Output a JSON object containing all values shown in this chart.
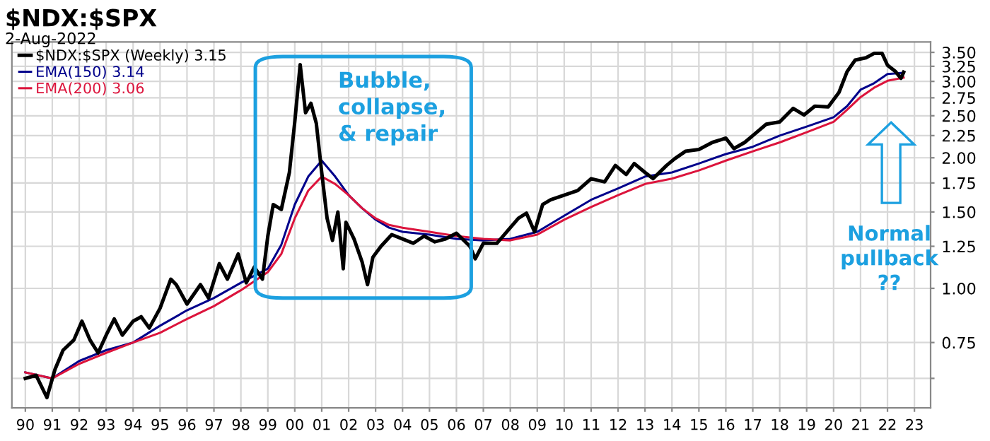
{
  "chart_data": {
    "type": "line",
    "title": "$NDX:$SPX",
    "subtitle": "2-Aug-2022",
    "annotations": [
      "Bubble, collapse, & repair",
      "Normal pullback ??"
    ],
    "log": "y",
    "grid": true,
    "legend": "top left",
    "line_style": "solid",
    "xlim": [
      1989.5,
      2023.6
    ],
    "xticks": [
      {
        "value": 1990,
        "label": "90"
      },
      {
        "value": 1991,
        "label": "91"
      },
      {
        "value": 1992,
        "label": "92"
      },
      {
        "value": 1993,
        "label": "93"
      },
      {
        "value": 1994,
        "label": "94"
      },
      {
        "value": 1995,
        "label": "95"
      },
      {
        "value": 1996,
        "label": "96"
      },
      {
        "value": 1997,
        "label": "97"
      },
      {
        "value": 1998,
        "label": "98"
      },
      {
        "value": 1999,
        "label": "99"
      },
      {
        "value": 2000,
        "label": "00"
      },
      {
        "value": 2001,
        "label": "01"
      },
      {
        "value": 2002,
        "label": "02"
      },
      {
        "value": 2003,
        "label": "03"
      },
      {
        "value": 2004,
        "label": "04"
      },
      {
        "value": 2005,
        "label": "05"
      },
      {
        "value": 2006,
        "label": "06"
      },
      {
        "value": 2007,
        "label": "07"
      },
      {
        "value": 2008,
        "label": "08"
      },
      {
        "value": 2009,
        "label": "09"
      },
      {
        "value": 2010,
        "label": "10"
      },
      {
        "value": 2011,
        "label": "11"
      },
      {
        "value": 2012,
        "label": "12"
      },
      {
        "value": 2013,
        "label": "13"
      },
      {
        "value": 2014,
        "label": "14"
      },
      {
        "value": 2015,
        "label": "15"
      },
      {
        "value": 2016,
        "label": "16"
      },
      {
        "value": 2017,
        "label": "17"
      },
      {
        "value": 2018,
        "label": "18"
      },
      {
        "value": 2019,
        "label": "19"
      },
      {
        "value": 2020,
        "label": "20"
      },
      {
        "value": 2021,
        "label": "21"
      },
      {
        "value": 2022,
        "label": "22"
      },
      {
        "value": 2023,
        "label": "23"
      }
    ],
    "ylim": [
      0.53,
      3.7
    ],
    "yticks": [
      {
        "value": 0.62,
        "label": null
      },
      {
        "value": 0.75,
        "label": "0.75"
      },
      {
        "value": 1,
        "label": "1.00"
      },
      {
        "value": 1.25,
        "label": "1.25"
      },
      {
        "value": 1.5,
        "label": "1.50"
      },
      {
        "value": 1.75,
        "label": "1.75"
      },
      {
        "value": 2,
        "label": "2.00"
      },
      {
        "value": 2.25,
        "label": "2.25"
      },
      {
        "value": 2.5,
        "label": "2.50"
      },
      {
        "value": 2.75,
        "label": "2.75"
      },
      {
        "value": 3,
        "label": "3.00"
      },
      {
        "value": 3.25,
        "label": "3.25"
      },
      {
        "value": 3.5,
        "label": "3.50"
      }
    ],
    "series": [
      {
        "name": "$NDX:$SPX (Weekly) 3.15",
        "color": "#000000",
        "x": [
          1990.0,
          1990.4,
          1990.8,
          1991.1,
          1991.4,
          1991.8,
          1992.1,
          1992.4,
          1992.7,
          1993.0,
          1993.3,
          1993.6,
          1994.0,
          1994.3,
          1994.6,
          1995.0,
          1995.4,
          1995.6,
          1996.0,
          1996.5,
          1996.8,
          1997.2,
          1997.5,
          1997.9,
          1998.2,
          1998.5,
          1998.8,
          1999.0,
          1999.2,
          1999.5,
          1999.8,
          2000.0,
          2000.2,
          2000.4,
          2000.6,
          2000.8,
          2001.0,
          2001.2,
          2001.4,
          2001.6,
          2001.8,
          2001.9,
          2002.2,
          2002.5,
          2002.7,
          2002.9,
          2003.2,
          2003.6,
          2004.0,
          2004.4,
          2004.8,
          2005.2,
          2005.6,
          2006.0,
          2006.5,
          2006.7,
          2007.0,
          2007.5,
          2008.0,
          2008.3,
          2008.6,
          2008.9,
          2009.2,
          2009.5,
          2010.0,
          2010.5,
          2011.0,
          2011.5,
          2011.9,
          2012.3,
          2012.6,
          2013.0,
          2013.3,
          2013.8,
          2014.1,
          2014.5,
          2015.0,
          2015.5,
          2016.0,
          2016.3,
          2016.7,
          2017.0,
          2017.5,
          2018.0,
          2018.5,
          2018.9,
          2019.3,
          2019.8,
          2020.2,
          2020.5,
          2020.8,
          2021.2,
          2021.5,
          2021.8,
          2022.0,
          2022.3,
          2022.5,
          2022.6
        ],
        "values": [
          0.62,
          0.63,
          0.56,
          0.65,
          0.72,
          0.76,
          0.84,
          0.76,
          0.71,
          0.78,
          0.85,
          0.78,
          0.84,
          0.86,
          0.81,
          0.9,
          1.05,
          1.02,
          0.92,
          1.02,
          0.95,
          1.14,
          1.05,
          1.2,
          1.03,
          1.12,
          1.05,
          1.32,
          1.56,
          1.52,
          1.85,
          2.42,
          3.28,
          2.54,
          2.67,
          2.4,
          1.85,
          1.45,
          1.29,
          1.5,
          1.11,
          1.42,
          1.3,
          1.15,
          1.02,
          1.18,
          1.25,
          1.33,
          1.3,
          1.27,
          1.32,
          1.28,
          1.3,
          1.34,
          1.25,
          1.17,
          1.27,
          1.27,
          1.38,
          1.45,
          1.49,
          1.35,
          1.56,
          1.6,
          1.64,
          1.68,
          1.79,
          1.76,
          1.92,
          1.83,
          1.94,
          1.85,
          1.79,
          1.92,
          1.99,
          2.07,
          2.09,
          2.17,
          2.22,
          2.1,
          2.17,
          2.25,
          2.39,
          2.42,
          2.6,
          2.51,
          2.63,
          2.62,
          2.83,
          3.16,
          3.36,
          3.4,
          3.48,
          3.48,
          3.27,
          3.16,
          3.05,
          3.15
        ]
      },
      {
        "name": "EMA(150) 3.14",
        "color": "#00008b",
        "x": [
          1990,
          1991,
          1992,
          1993,
          1994,
          1995,
          1996,
          1997,
          1998,
          1999,
          1999.5,
          2000,
          2000.5,
          2001,
          2001.5,
          2002,
          2002.5,
          2003,
          2003.5,
          2004,
          2005,
          2006,
          2007,
          2008,
          2009,
          2010,
          2011,
          2012,
          2013,
          2014,
          2015,
          2016,
          2017,
          2018,
          2019,
          2020,
          2020.5,
          2021,
          2021.5,
          2022,
          2022.6
        ],
        "values": [
          0.64,
          0.62,
          0.68,
          0.72,
          0.75,
          0.82,
          0.89,
          0.95,
          1.03,
          1.11,
          1.26,
          1.56,
          1.81,
          1.97,
          1.81,
          1.64,
          1.53,
          1.44,
          1.38,
          1.35,
          1.33,
          1.3,
          1.29,
          1.3,
          1.35,
          1.47,
          1.6,
          1.7,
          1.81,
          1.85,
          1.94,
          2.04,
          2.12,
          2.25,
          2.36,
          2.48,
          2.63,
          2.87,
          2.97,
          3.12,
          3.14
        ]
      },
      {
        "name": "EMA(200) 3.06",
        "color": "#dc143c",
        "x": [
          1990,
          1991,
          1992,
          1993,
          1994,
          1995,
          1996,
          1997,
          1998,
          1999,
          1999.5,
          2000,
          2000.5,
          2001,
          2001.5,
          2002,
          2002.5,
          2003,
          2003.5,
          2004,
          2005,
          2006,
          2007,
          2008,
          2009,
          2010,
          2011,
          2012,
          2013,
          2014,
          2015,
          2016,
          2017,
          2018,
          2019,
          2020,
          2020.5,
          2021,
          2021.5,
          2022,
          2022.6
        ],
        "values": [
          0.64,
          0.62,
          0.67,
          0.71,
          0.75,
          0.79,
          0.85,
          0.91,
          0.99,
          1.09,
          1.2,
          1.45,
          1.68,
          1.81,
          1.74,
          1.64,
          1.53,
          1.45,
          1.4,
          1.38,
          1.35,
          1.32,
          1.3,
          1.29,
          1.33,
          1.44,
          1.54,
          1.64,
          1.74,
          1.79,
          1.87,
          1.97,
          2.07,
          2.17,
          2.29,
          2.42,
          2.58,
          2.76,
          2.9,
          3.01,
          3.06
        ]
      }
    ]
  }
}
